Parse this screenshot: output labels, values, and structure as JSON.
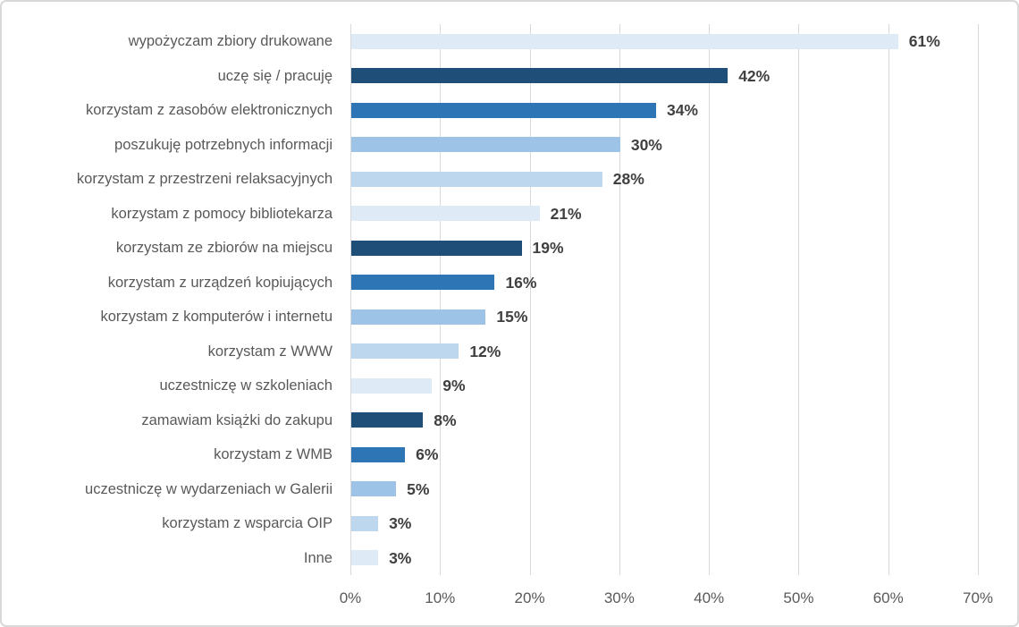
{
  "chart_data": {
    "type": "bar",
    "orientation": "horizontal",
    "title": "",
    "xlabel": "",
    "ylabel": "",
    "legend": "none",
    "grid": "vertical",
    "xlim": [
      0,
      70
    ],
    "x_tick_values": [
      0,
      10,
      20,
      30,
      40,
      50,
      60,
      70
    ],
    "x_tick_labels": [
      "0%",
      "10%",
      "20%",
      "30%",
      "40%",
      "50%",
      "60%",
      "70%"
    ],
    "categories": [
      "wypożyczam zbiory drukowane",
      "uczę się / pracuję",
      "korzystam z zasobów elektronicznych",
      "poszukuję potrzebnych informacji",
      "korzystam z przestrzeni relaksacyjnych",
      "korzystam z pomocy bibliotekarza",
      "korzystam ze zbiorów na miejscu",
      "korzystam z urządzeń kopiujących",
      "korzystam z komputerów i internetu",
      "korzystam z WWW",
      "uczestniczę w szkoleniach",
      "zamawiam książki do zakupu",
      "korzystam z WMB",
      "uczestniczę w wydarzeniach w Galerii",
      "korzystam z wsparcia OIP",
      "Inne"
    ],
    "values": [
      61,
      42,
      34,
      30,
      28,
      21,
      19,
      16,
      15,
      12,
      9,
      8,
      6,
      5,
      3,
      3
    ],
    "value_labels": [
      "61%",
      "42%",
      "34%",
      "30%",
      "28%",
      "21%",
      "19%",
      "16%",
      "15%",
      "12%",
      "9%",
      "8%",
      "6%",
      "5%",
      "3%",
      "3%"
    ],
    "bar_palette": [
      "#DEEAF6",
      "#1F4E79",
      "#2E75B6",
      "#9DC3E6",
      "#BDD7EE"
    ],
    "palette_cycle": true,
    "colors": {
      "gridline": "#D9D9D9",
      "axis_line": "#D9D9D9",
      "category_label": "#595959",
      "value_label": "#404040",
      "tick_label": "#595959",
      "background": "#FFFFFF",
      "frame_border": "#D8D8D8"
    }
  }
}
